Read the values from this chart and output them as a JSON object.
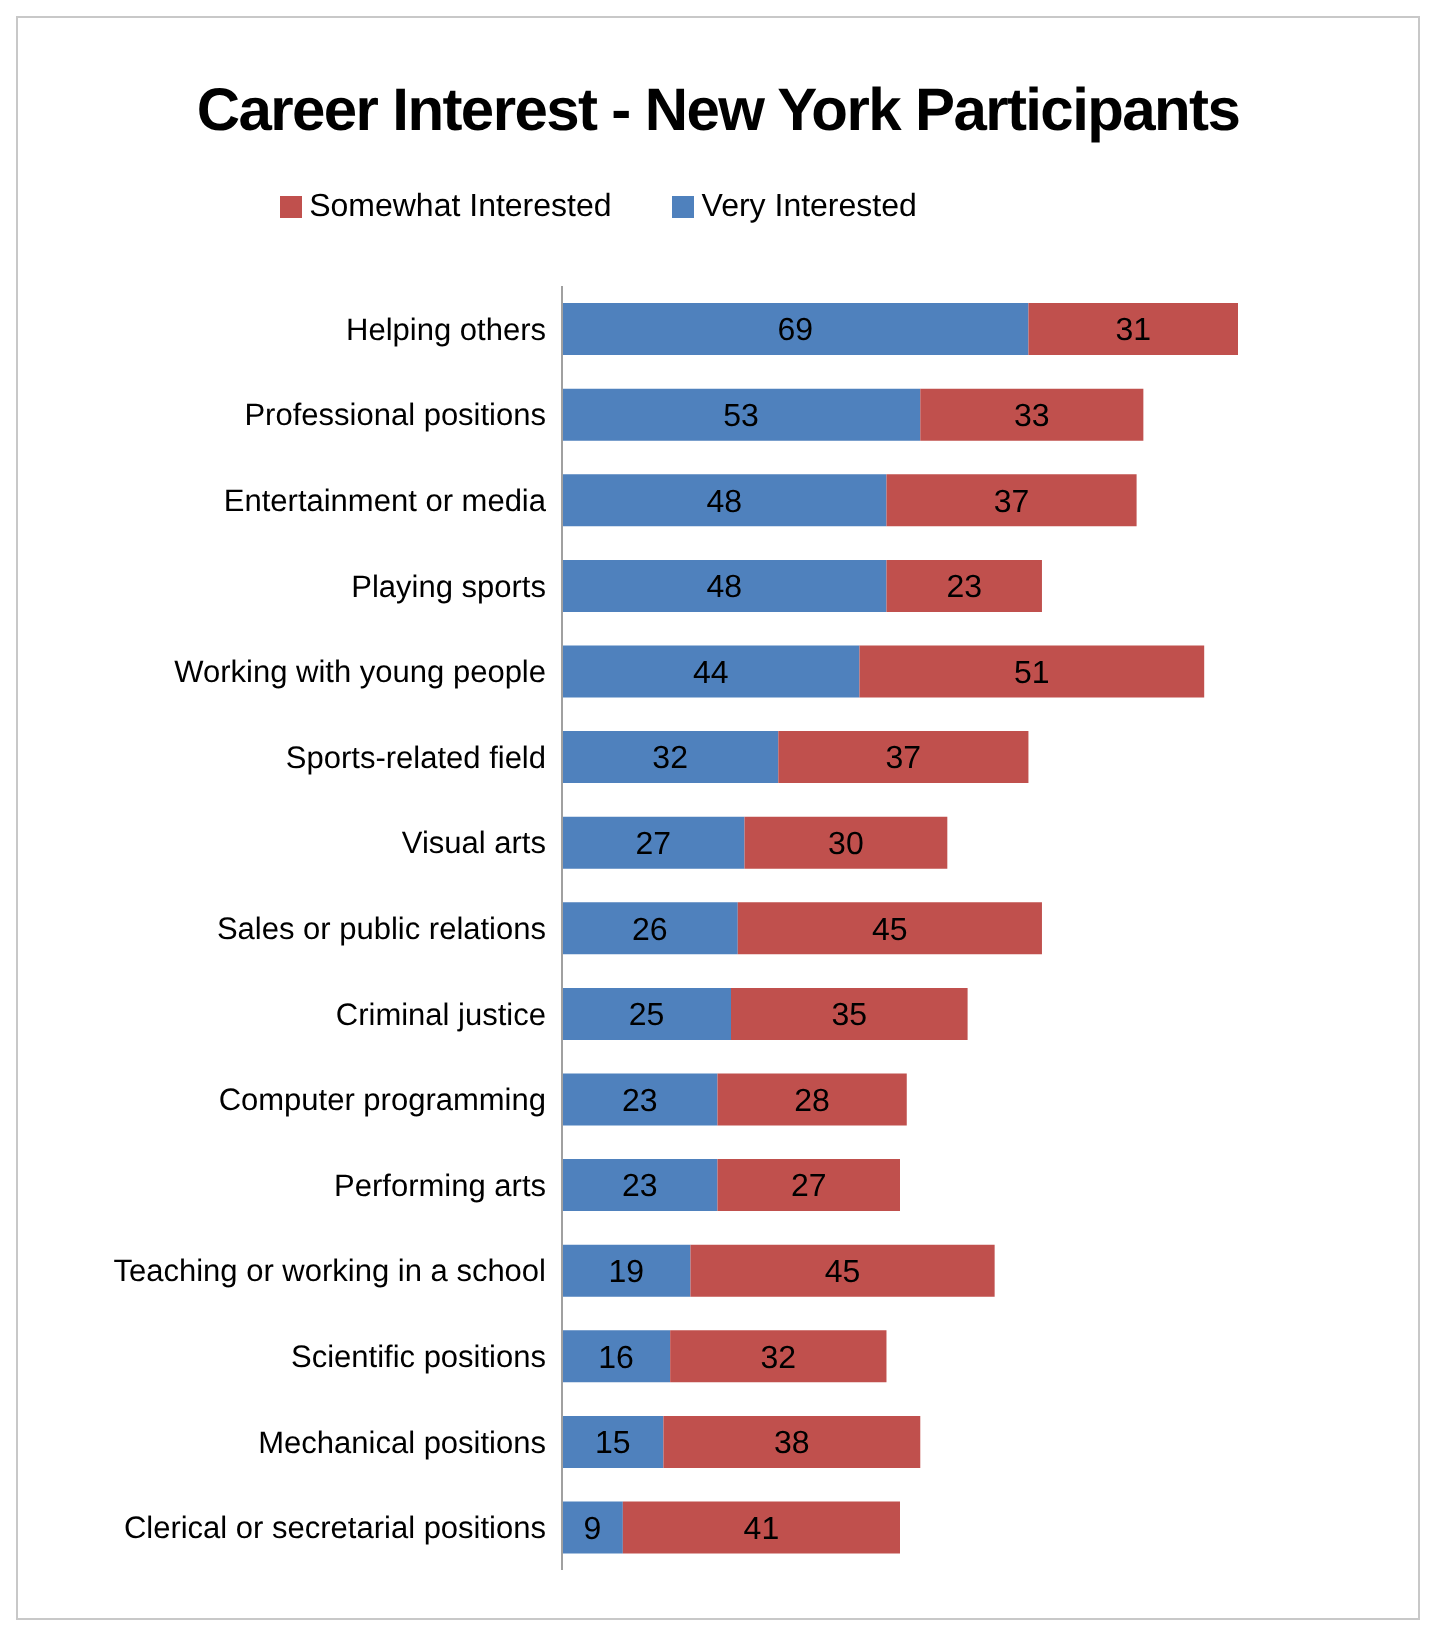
{
  "chart_data": {
    "type": "bar",
    "title": "Career Interest - New York Participants",
    "orientation": "horizontal",
    "stacked": true,
    "legend": "top",
    "data_labels": true,
    "categories": [
      "Helping others",
      "Professional positions",
      "Entertainment or media",
      "Playing sports",
      "Working with young people",
      "Sports-related field",
      "Visual arts",
      "Sales or public relations",
      "Criminal justice",
      "Computer programming",
      "Performing arts",
      "Teaching or working in a school",
      "Scientific positions",
      "Mechanical positions",
      "Clerical or secretarial positions"
    ],
    "series": [
      {
        "name": "Very Interested",
        "color": "#4f81bd",
        "values": [
          69,
          53,
          48,
          48,
          44,
          32,
          27,
          26,
          25,
          23,
          23,
          19,
          16,
          15,
          9
        ]
      },
      {
        "name": "Somewhat Interested",
        "color": "#c0504d",
        "values": [
          31,
          33,
          37,
          23,
          51,
          37,
          30,
          45,
          35,
          28,
          27,
          45,
          32,
          38,
          41
        ]
      }
    ]
  }
}
